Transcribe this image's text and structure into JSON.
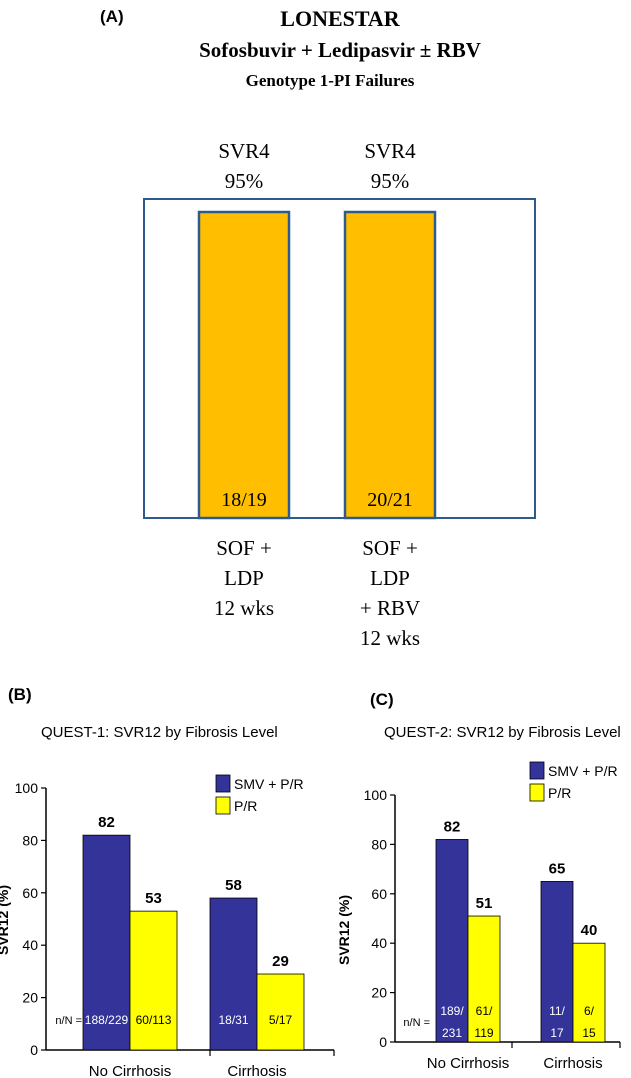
{
  "colors": {
    "primary": "#ffbf00",
    "smv": "#333399",
    "pr": "#ffff00",
    "frame": "#2e5b8c"
  },
  "chart_data": [
    {
      "panel": "(A)",
      "type": "bar",
      "title": "LONESTAR",
      "subtitle1": "Sofosbuvir + Ledipasvir ± RBV",
      "subtitle2": "Genotype 1-PI Failures",
      "top_labels": [
        [
          "SVR4",
          "95%"
        ],
        [
          "SVR4",
          "95%"
        ]
      ],
      "bar_labels": [
        "18/19",
        "20/21"
      ],
      "category_labels": [
        [
          "SOF +",
          "LDP",
          "12 wks"
        ],
        [
          "SOF +",
          "LDP",
          "+ RBV",
          "12 wks"
        ]
      ],
      "values": [
        95,
        95
      ]
    },
    {
      "panel": "(B)",
      "type": "bar",
      "title": "QUEST-1: SVR12 by Fibrosis Level",
      "ylabel": "SVR12 (%)",
      "ylim": [
        0,
        100
      ],
      "yticks": [
        "0",
        "20",
        "40",
        "60",
        "80",
        "100"
      ],
      "categories": [
        "No Cirrhosis",
        "Cirrhosis"
      ],
      "nN_label": "n/N =",
      "series": [
        {
          "name": "SMV + P/R",
          "values": [
            82,
            58
          ],
          "value_labels": [
            "82",
            "58"
          ],
          "nN": [
            [
              "188/229"
            ],
            [
              "18/31"
            ]
          ]
        },
        {
          "name": "P/R",
          "values": [
            53,
            29
          ],
          "value_labels": [
            "53",
            "29"
          ],
          "nN": [
            [
              "60/113"
            ],
            [
              "5/17"
            ]
          ]
        }
      ]
    },
    {
      "panel": "(C)",
      "type": "bar",
      "title": "QUEST-2: SVR12 by Fibrosis Level",
      "ylabel": "SVR12 (%)",
      "ylim": [
        0,
        100
      ],
      "yticks": [
        "0",
        "20",
        "40",
        "60",
        "80",
        "100"
      ],
      "categories": [
        "No Cirrhosis",
        "Cirrhosis"
      ],
      "nN_label": "n/N =",
      "series": [
        {
          "name": "SMV + P/R",
          "values": [
            82,
            65
          ],
          "value_labels": [
            "82",
            "65"
          ],
          "nN": [
            [
              "189/",
              "231"
            ],
            [
              "11/",
              "17"
            ]
          ]
        },
        {
          "name": "P/R",
          "values": [
            51,
            40
          ],
          "value_labels": [
            "51",
            "40"
          ],
          "nN": [
            [
              "61/",
              "119"
            ],
            [
              "6/",
              "15"
            ]
          ]
        }
      ]
    }
  ]
}
